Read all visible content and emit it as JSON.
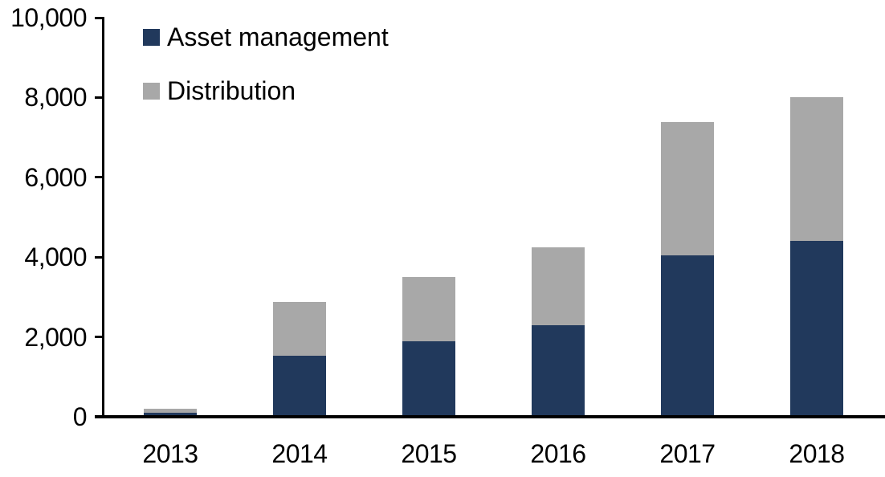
{
  "chart_data": {
    "type": "bar",
    "stacked": true,
    "title": "",
    "xlabel": "",
    "ylabel": "",
    "categories": [
      "2013",
      "2014",
      "2015",
      "2016",
      "2017",
      "2018"
    ],
    "series": [
      {
        "name": "Asset management",
        "color": "#21395c",
        "values": [
          100,
          1530,
          1890,
          2290,
          4040,
          4400
        ]
      },
      {
        "name": "Distribution",
        "color": "#a8a8a8",
        "values": [
          100,
          1340,
          1610,
          1950,
          3350,
          3610
        ]
      }
    ],
    "ylim": [
      0,
      10000
    ],
    "yticks": [
      0,
      2000,
      4000,
      6000,
      8000,
      10000
    ],
    "ytick_labels": [
      "0",
      "2,000",
      "4,000",
      "6,000",
      "8,000",
      "10,000"
    ],
    "grid": false,
    "legend_position": "top-left-inside"
  },
  "colors": {
    "axis": "#000000",
    "background": "#ffffff"
  }
}
